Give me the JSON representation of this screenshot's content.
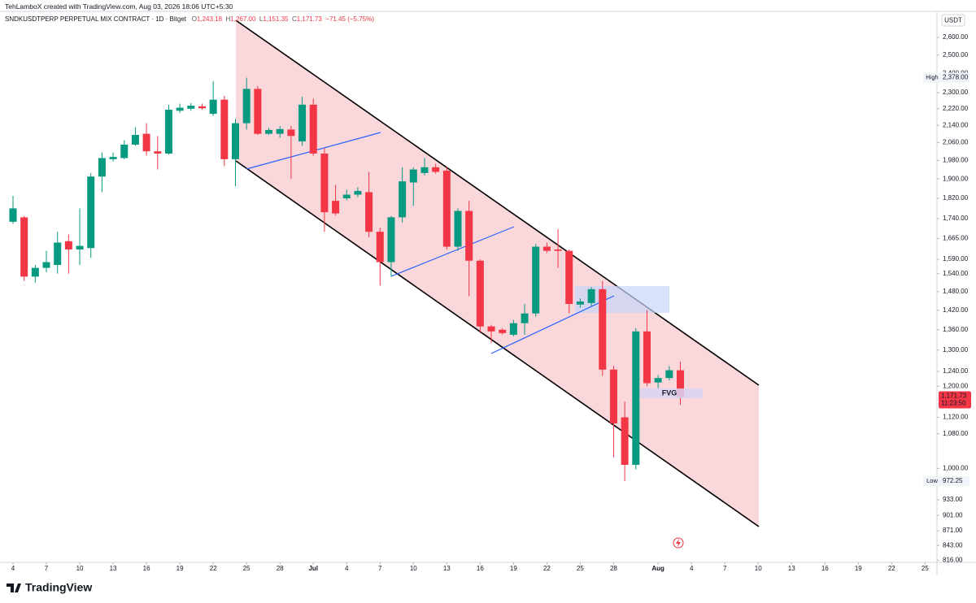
{
  "header": {
    "credit": "TehLamboX created with TradingView.com, Aug 03, 2026 18:06 UTC+5:30",
    "symbol": "SNDKUSDTPERP PERPETUAL MIX CONTRACT · 1D · Bitget",
    "ohlc": [
      {
        "label": "O",
        "value": "1,243.18"
      },
      {
        "label": "H",
        "value": "1,267.00"
      },
      {
        "label": "L",
        "value": "1,151.35"
      },
      {
        "label": "C",
        "value": "1,171.73"
      }
    ],
    "change": "−71.45 (−5.75%)"
  },
  "chart_data": {
    "type": "candlestick",
    "x": [
      "2026-06-04",
      "2026-06-05",
      "2026-06-06",
      "2026-06-07",
      "2026-06-08",
      "2026-06-09",
      "2026-06-10",
      "2026-06-11",
      "2026-06-12",
      "2026-06-13",
      "2026-06-14",
      "2026-06-15",
      "2026-06-16",
      "2026-06-17",
      "2026-06-18",
      "2026-06-19",
      "2026-06-20",
      "2026-06-21",
      "2026-06-22",
      "2026-06-23",
      "2026-06-24",
      "2026-06-25",
      "2026-06-26",
      "2026-06-27",
      "2026-06-28",
      "2026-06-29",
      "2026-06-30",
      "2026-07-01",
      "2026-07-02",
      "2026-07-03",
      "2026-07-04",
      "2026-07-05",
      "2026-07-06",
      "2026-07-07",
      "2026-07-08",
      "2026-07-09",
      "2026-07-10",
      "2026-07-11",
      "2026-07-12",
      "2026-07-13",
      "2026-07-14",
      "2026-07-15",
      "2026-07-16",
      "2026-07-17",
      "2026-07-18",
      "2026-07-19",
      "2026-07-20",
      "2026-07-21",
      "2026-07-22",
      "2026-07-23",
      "2026-07-24",
      "2026-07-25",
      "2026-07-26",
      "2026-07-27",
      "2026-07-28",
      "2026-07-29",
      "2026-07-30",
      "2026-07-31",
      "2026-08-01",
      "2026-08-02",
      "2026-08-03"
    ],
    "open": [
      1728,
      1745,
      1530,
      1560,
      1570,
      1655,
      1625,
      1630,
      1910,
      1985,
      1990,
      2050,
      2100,
      2020,
      2010,
      2210,
      2220,
      2232,
      2195,
      2265,
      1985,
      2150,
      2320,
      2100,
      2100,
      2120,
      2065,
      2240,
      2010,
      1810,
      1820,
      1835,
      1845,
      1690,
      1580,
      1745,
      1885,
      1925,
      1950,
      1935,
      1635,
      1770,
      1585,
      1370,
      1360,
      1345,
      1380,
      1410,
      1635,
      1625,
      1620,
      1438,
      1443,
      1488,
      1245,
      1120,
      1008,
      1355,
      1210,
      1222,
      1243.18
    ],
    "high": [
      1830,
      1750,
      1570,
      1620,
      1690,
      1680,
      1780,
      1925,
      2015,
      2015,
      2070,
      2130,
      2150,
      2090,
      2240,
      2245,
      2248,
      2245,
      2360,
      2285,
      2170,
      2378,
      2335,
      2128,
      2137,
      2137,
      2280,
      2270,
      2035,
      1875,
      1855,
      1865,
      1930,
      1705,
      1750,
      1950,
      1950,
      1990,
      1965,
      1950,
      1780,
      1810,
      1590,
      1375,
      1365,
      1390,
      1440,
      1645,
      1650,
      1700,
      1625,
      1458,
      1495,
      1515,
      1255,
      1160,
      1365,
      1420,
      1230,
      1255,
      1267
    ],
    "low": [
      1720,
      1515,
      1510,
      1545,
      1540,
      1540,
      1570,
      1595,
      1845,
      1975,
      1985,
      2045,
      2000,
      1940,
      2005,
      2200,
      2210,
      2215,
      2185,
      1955,
      1870,
      2120,
      2095,
      2095,
      2082,
      1900,
      2045,
      2000,
      1690,
      1752,
      1812,
      1825,
      1670,
      1500,
      1530,
      1725,
      1790,
      1915,
      1922,
      1625,
      1620,
      1465,
      1350,
      1320,
      1345,
      1340,
      1345,
      1400,
      1612,
      1560,
      1410,
      1428,
      1433,
      1228,
      1025,
      972.25,
      998,
      1200,
      1195,
      1215,
      1151.35
    ],
    "close": [
      1780,
      1530,
      1560,
      1580,
      1650,
      1625,
      1638,
      1910,
      1990,
      1995,
      2050,
      2095,
      2020,
      2010,
      2215,
      2225,
      2235,
      2222,
      2265,
      1985,
      2150,
      2320,
      2100,
      2118,
      2122,
      2090,
      2240,
      2010,
      1765,
      1760,
      1835,
      1850,
      1690,
      1580,
      1745,
      1890,
      1940,
      1950,
      1930,
      1635,
      1770,
      1585,
      1370,
      1355,
      1350,
      1380,
      1410,
      1635,
      1620,
      1620,
      1440,
      1448,
      1488,
      1245,
      1105,
      1008,
      1355,
      1208,
      1222,
      1243.18,
      1171.73
    ],
    "up_color": "#089981",
    "down_color": "#f23645",
    "log_scale": true,
    "grid": false,
    "ylim": [
      812,
      2735
    ],
    "yticks": [
      {
        "value": 2600,
        "label": "2,600.00"
      },
      {
        "value": 2500,
        "label": "2,500.00"
      },
      {
        "value": 2400,
        "label": "2,400.00"
      },
      {
        "value": 2300,
        "label": "2,300.00"
      },
      {
        "value": 2220,
        "label": "2,220.00"
      },
      {
        "value": 2140,
        "label": "2,140.00"
      },
      {
        "value": 2060,
        "label": "2,060.00"
      },
      {
        "value": 1980,
        "label": "1,980.00"
      },
      {
        "value": 1900,
        "label": "1,900.00"
      },
      {
        "value": 1820,
        "label": "1,820.00"
      },
      {
        "value": 1740,
        "label": "1,740.00"
      },
      {
        "value": 1665,
        "label": "1,665.00"
      },
      {
        "value": 1590,
        "label": "1,590.00"
      },
      {
        "value": 1540,
        "label": "1,540.00"
      },
      {
        "value": 1480,
        "label": "1,480.00"
      },
      {
        "value": 1420,
        "label": "1,420.00"
      },
      {
        "value": 1360,
        "label": "1,360.00"
      },
      {
        "value": 1300,
        "label": "1,300.00"
      },
      {
        "value": 1240,
        "label": "1,240.00"
      },
      {
        "value": 1200,
        "label": "1,200.00"
      },
      {
        "value": 1120,
        "label": "1,120.00"
      },
      {
        "value": 1080,
        "label": "1,080.00"
      },
      {
        "value": 1000,
        "label": "1,000.00"
      },
      {
        "value": 933,
        "label": "933.00"
      },
      {
        "value": 901,
        "label": "901.00"
      },
      {
        "value": 871,
        "label": "871.00"
      },
      {
        "value": 843,
        "label": "843.00"
      },
      {
        "value": 816,
        "label": "816.00"
      }
    ],
    "xticks": [
      {
        "value": "2026-06-04",
        "label": "4"
      },
      {
        "value": "2026-06-07",
        "label": "7"
      },
      {
        "value": "2026-06-10",
        "label": "10"
      },
      {
        "value": "2026-06-13",
        "label": "13"
      },
      {
        "value": "2026-06-16",
        "label": "16"
      },
      {
        "value": "2026-06-19",
        "label": "19"
      },
      {
        "value": "2026-06-22",
        "label": "22"
      },
      {
        "value": "2026-06-25",
        "label": "25"
      },
      {
        "value": "2026-06-28",
        "label": "28"
      },
      {
        "value": "2026-07-01",
        "label": "Jul"
      },
      {
        "value": "2026-07-04",
        "label": "4"
      },
      {
        "value": "2026-07-07",
        "label": "7"
      },
      {
        "value": "2026-07-10",
        "label": "10"
      },
      {
        "value": "2026-07-13",
        "label": "13"
      },
      {
        "value": "2026-07-16",
        "label": "16"
      },
      {
        "value": "2026-07-19",
        "label": "19"
      },
      {
        "value": "2026-07-22",
        "label": "22"
      },
      {
        "value": "2026-07-25",
        "label": "25"
      },
      {
        "value": "2026-07-28",
        "label": "28"
      },
      {
        "value": "2026-08-01",
        "label": "Aug"
      },
      {
        "value": "2026-08-04",
        "label": "4"
      },
      {
        "value": "2026-08-07",
        "label": "7"
      },
      {
        "value": "2026-08-10",
        "label": "10"
      },
      {
        "value": "2026-08-13",
        "label": "13"
      },
      {
        "value": "2026-08-16",
        "label": "16"
      },
      {
        "value": "2026-08-19",
        "label": "19"
      },
      {
        "value": "2026-08-22",
        "label": "22"
      },
      {
        "value": "2026-08-25",
        "label": "25"
      }
    ],
    "currency": "USDT",
    "high_marker": {
      "label": "High",
      "value": 2378,
      "value_label": "2,378.00"
    },
    "low_marker": {
      "label": "Low",
      "value": 972.25,
      "value_label": "972.25"
    },
    "price_marker": {
      "value": 1171.73,
      "value_label": "1,171.73",
      "countdown": "11:23:50"
    },
    "annotation": "FVG"
  },
  "brand": "TradingView"
}
